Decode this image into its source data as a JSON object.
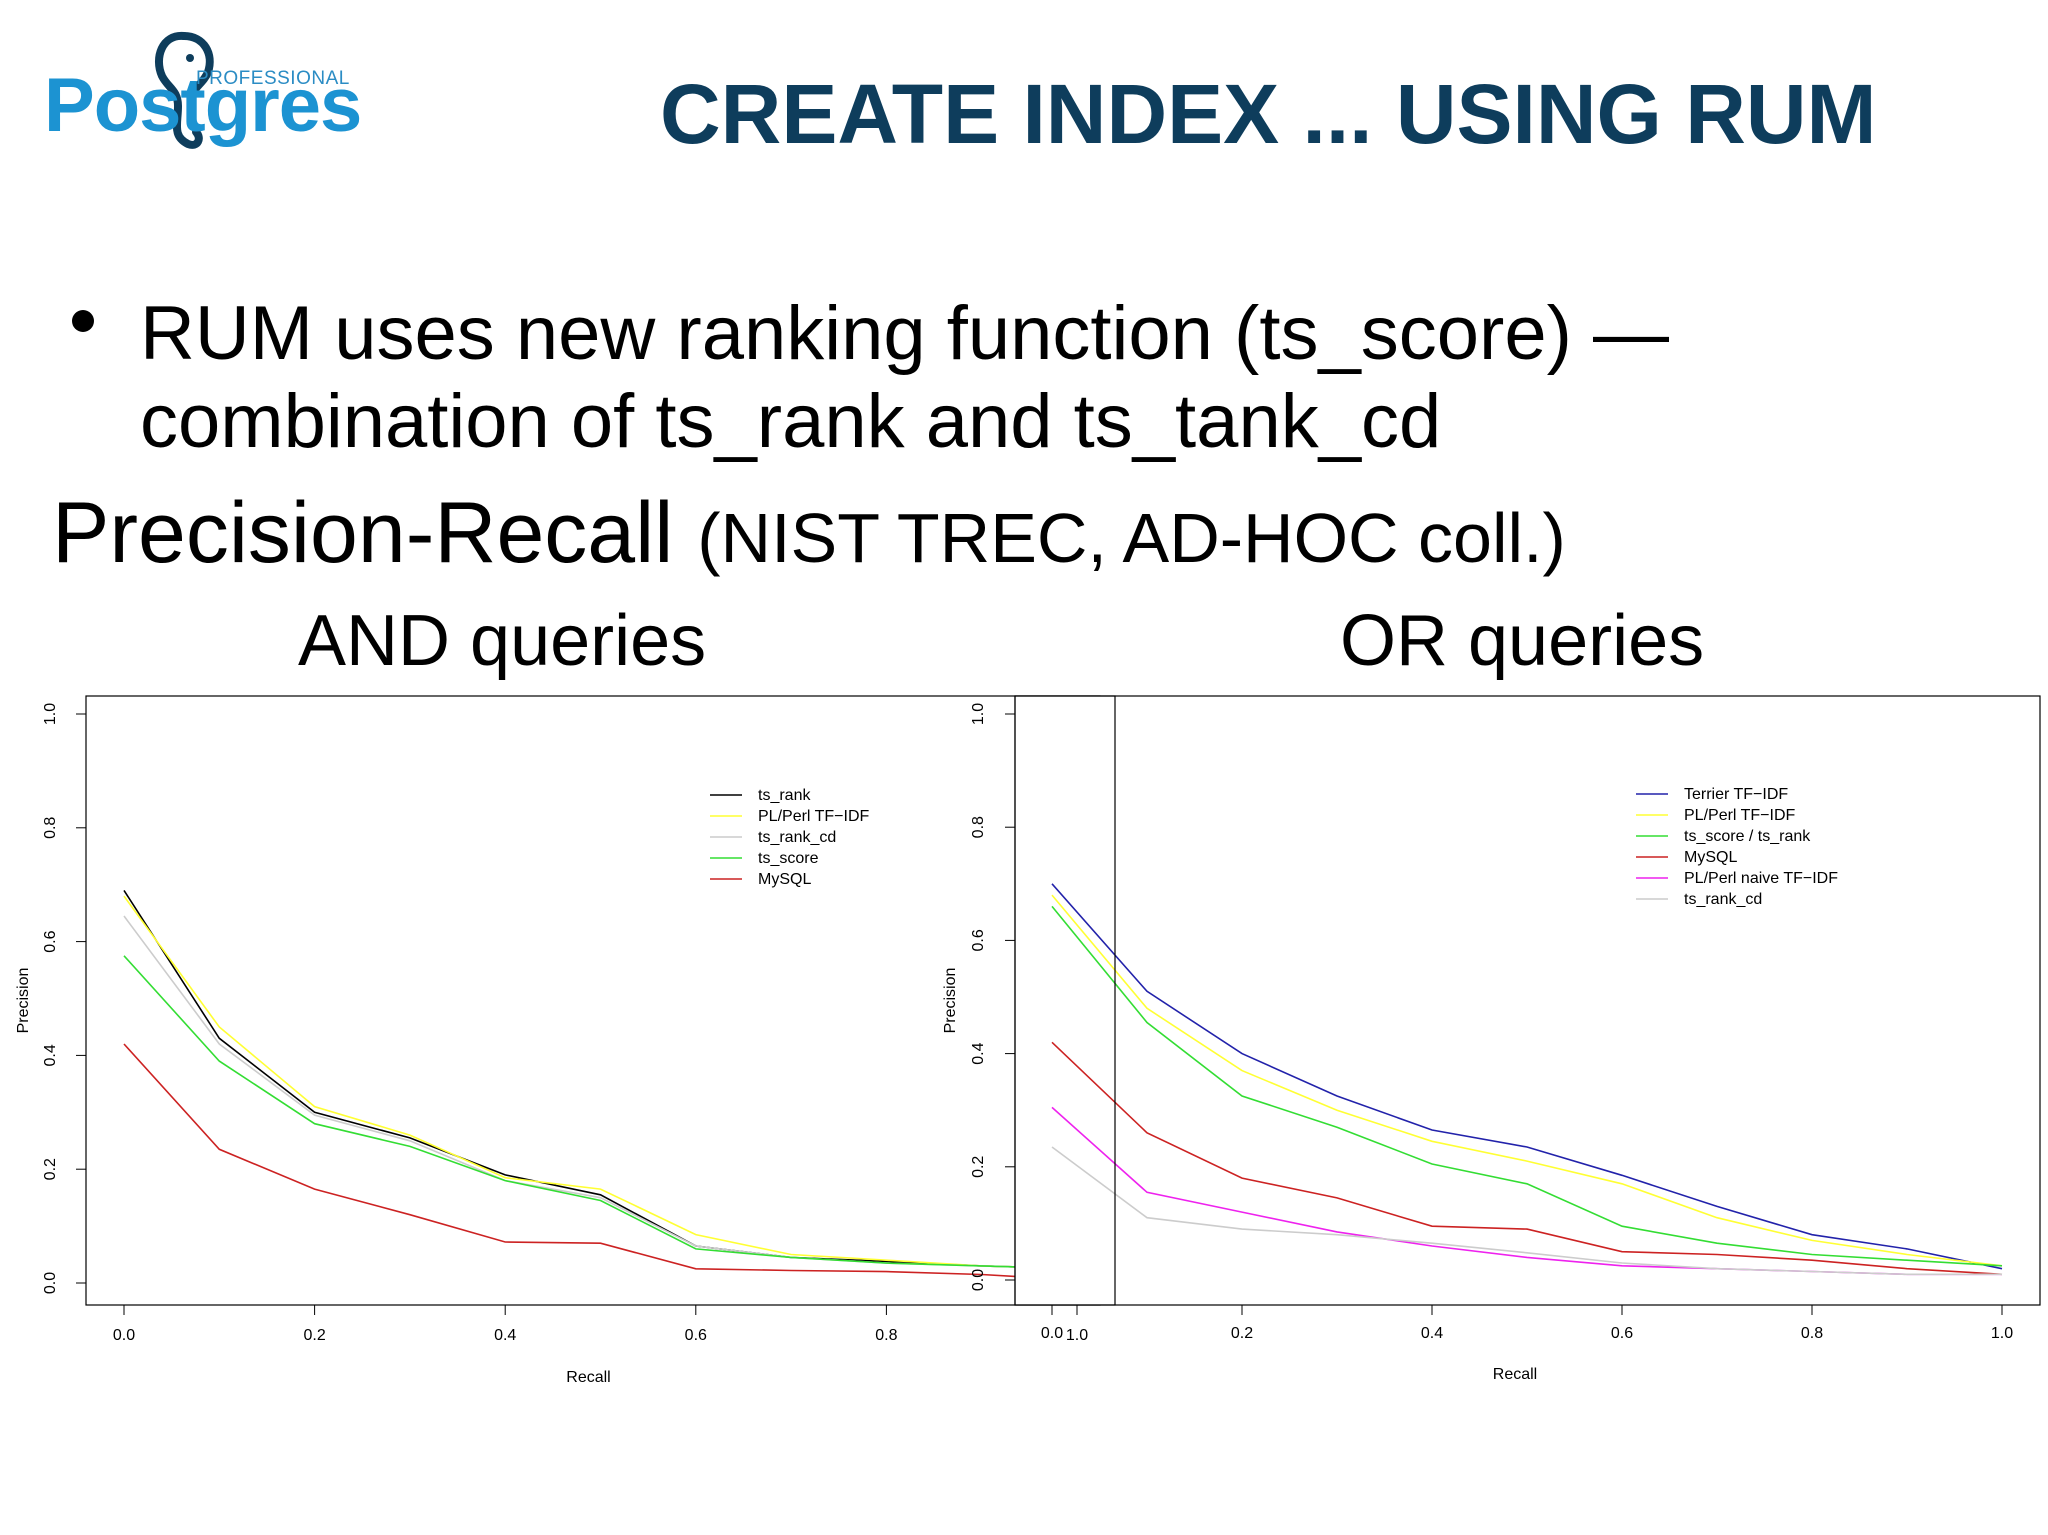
{
  "logo": {
    "top_text": "PROFESSIONAL",
    "word": "Postgres"
  },
  "slide": {
    "title": "CREATE INDEX ... USING RUM",
    "bullet": "RUM uses new ranking function (ts_score) — combination of ts_rank and ts_tank_cd",
    "pr_title_main": "Precision-Recall",
    "pr_title_sub": "(NIST TREC, AD-HOC coll.)",
    "left_caption": "AND queries",
    "right_caption": "OR queries"
  },
  "chart_data": [
    {
      "type": "line",
      "xlabel": "Recall",
      "ylabel": "Precision",
      "xlim": [
        0,
        1
      ],
      "ylim": [
        0,
        1
      ],
      "xticks": [
        "0.0",
        "0.2",
        "0.4",
        "0.6",
        "0.8",
        "1.0"
      ],
      "yticks": [
        "0.0",
        "0.2",
        "0.4",
        "0.6",
        "0.8",
        "1.0"
      ],
      "legend": "top-right",
      "x": [
        0.0,
        0.1,
        0.2,
        0.3,
        0.4,
        0.5,
        0.6,
        0.7,
        0.8,
        0.9,
        1.0
      ],
      "series": [
        {
          "name": "ts_rank",
          "color": "#000000",
          "values": [
            0.69,
            0.43,
            0.3,
            0.255,
            0.19,
            0.155,
            0.065,
            0.045,
            0.038,
            0.03,
            0.025
          ]
        },
        {
          "name": "PL/Perl TF−IDF",
          "color": "#ffff33",
          "values": [
            0.68,
            0.45,
            0.31,
            0.26,
            0.185,
            0.165,
            0.085,
            0.05,
            0.04,
            0.03,
            0.025
          ]
        },
        {
          "name": "ts_rank_cd",
          "color": "#cccccc",
          "values": [
            0.645,
            0.42,
            0.295,
            0.25,
            0.18,
            0.15,
            0.065,
            0.045,
            0.035,
            0.03,
            0.025
          ]
        },
        {
          "name": "ts_score",
          "color": "#33dd33",
          "values": [
            0.575,
            0.39,
            0.28,
            0.24,
            0.18,
            0.145,
            0.06,
            0.045,
            0.035,
            0.03,
            0.025
          ]
        },
        {
          "name": "MySQL",
          "color": "#cc2222",
          "values": [
            0.42,
            0.235,
            0.165,
            0.12,
            0.072,
            0.07,
            0.025,
            0.022,
            0.02,
            0.015,
            0.005
          ]
        }
      ]
    },
    {
      "type": "line",
      "xlabel": "Recall",
      "ylabel": "Precision",
      "xlim": [
        0,
        1
      ],
      "ylim": [
        0,
        1
      ],
      "xticks": [
        "0.0",
        "0.2",
        "0.4",
        "0.6",
        "0.8",
        "1.0"
      ],
      "yticks": [
        "0.0",
        "0.2",
        "0.4",
        "0.6",
        "0.8",
        "1.0"
      ],
      "legend": "top-right",
      "x": [
        0.0,
        0.1,
        0.2,
        0.3,
        0.4,
        0.5,
        0.6,
        0.7,
        0.8,
        0.9,
        1.0
      ],
      "series": [
        {
          "name": "Terrier TF−IDF",
          "color": "#2222aa",
          "values": [
            0.7,
            0.51,
            0.4,
            0.325,
            0.265,
            0.235,
            0.185,
            0.13,
            0.08,
            0.055,
            0.02
          ]
        },
        {
          "name": "PL/Perl TF−IDF",
          "color": "#ffff33",
          "values": [
            0.68,
            0.48,
            0.37,
            0.3,
            0.245,
            0.21,
            0.17,
            0.11,
            0.07,
            0.045,
            0.025
          ]
        },
        {
          "name": "ts_score / ts_rank",
          "color": "#33dd33",
          "values": [
            0.66,
            0.455,
            0.325,
            0.27,
            0.205,
            0.17,
            0.095,
            0.065,
            0.045,
            0.035,
            0.025
          ]
        },
        {
          "name": "MySQL",
          "color": "#cc2222",
          "values": [
            0.42,
            0.26,
            0.18,
            0.145,
            0.095,
            0.09,
            0.05,
            0.045,
            0.035,
            0.02,
            0.01
          ]
        },
        {
          "name": "PL/Perl naive TF−IDF",
          "color": "#ee22ee",
          "values": [
            0.305,
            0.155,
            0.12,
            0.085,
            0.06,
            0.04,
            0.025,
            0.02,
            0.015,
            0.01,
            0.01
          ]
        },
        {
          "name": "ts_rank_cd",
          "color": "#cccccc",
          "values": [
            0.235,
            0.11,
            0.09,
            0.08,
            0.065,
            0.048,
            0.03,
            0.02,
            0.015,
            0.01,
            0.01
          ]
        }
      ]
    }
  ]
}
